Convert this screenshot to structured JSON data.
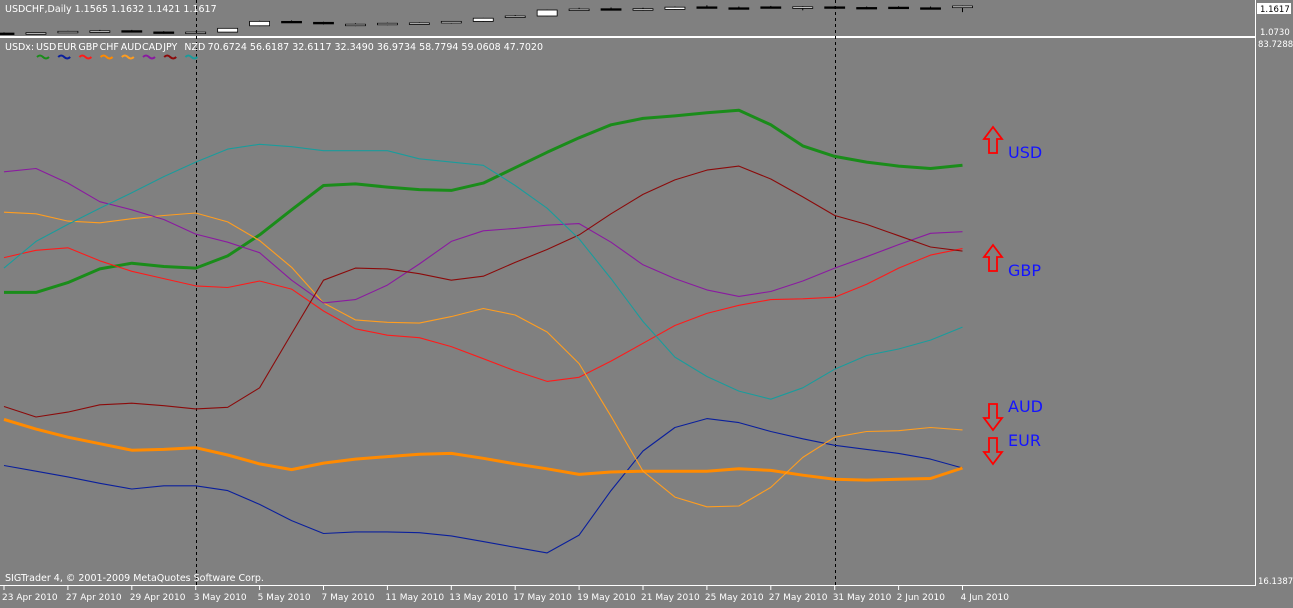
{
  "top_panel": {
    "label": "USDCHF,Daily  1.1565 1.1632 1.1421 1.1617",
    "price_high": "1.1617",
    "price_low": "1.0730",
    "candles": [
      {
        "o": 1.076,
        "h": 1.078,
        "l": 1.0735,
        "c": 1.074
      },
      {
        "o": 1.0745,
        "h": 1.0775,
        "l": 1.073,
        "c": 1.077
      },
      {
        "o": 1.0785,
        "h": 1.083,
        "l": 1.077,
        "c": 1.0815
      },
      {
        "o": 1.0815,
        "h": 1.086,
        "l": 1.08,
        "c": 1.083
      },
      {
        "o": 1.0835,
        "h": 1.086,
        "l": 1.079,
        "c": 1.08
      },
      {
        "o": 1.0795,
        "h": 1.082,
        "l": 1.074,
        "c": 1.076
      },
      {
        "o": 1.076,
        "h": 1.081,
        "l": 1.0735,
        "c": 1.079
      },
      {
        "o": 1.079,
        "h": 1.092,
        "l": 1.078,
        "c": 1.091
      },
      {
        "o": 1.099,
        "h": 1.115,
        "l": 1.098,
        "c": 1.113
      },
      {
        "o": 1.113,
        "h": 1.116,
        "l": 1.108,
        "c": 1.11
      },
      {
        "o": 1.11,
        "h": 1.112,
        "l": 1.103,
        "c": 1.105
      },
      {
        "o": 1.1,
        "h": 1.107,
        "l": 1.098,
        "c": 1.104
      },
      {
        "o": 1.104,
        "h": 1.109,
        "l": 1.101,
        "c": 1.107
      },
      {
        "o": 1.107,
        "h": 1.11,
        "l": 1.104,
        "c": 1.108
      },
      {
        "o": 1.108,
        "h": 1.114,
        "l": 1.106,
        "c": 1.113
      },
      {
        "o": 1.113,
        "h": 1.124,
        "l": 1.112,
        "c": 1.123
      },
      {
        "o": 1.128,
        "h": 1.133,
        "l": 1.125,
        "c": 1.13
      },
      {
        "o": 1.13,
        "h": 1.15,
        "l": 1.129,
        "c": 1.149
      },
      {
        "o": 1.15,
        "h": 1.156,
        "l": 1.147,
        "c": 1.152
      },
      {
        "o": 1.153,
        "h": 1.157,
        "l": 1.149,
        "c": 1.15
      },
      {
        "o": 1.151,
        "h": 1.156,
        "l": 1.147,
        "c": 1.153
      },
      {
        "o": 1.151,
        "h": 1.16,
        "l": 1.15,
        "c": 1.158
      },
      {
        "o": 1.159,
        "h": 1.164,
        "l": 1.155,
        "c": 1.156
      },
      {
        "o": 1.156,
        "h": 1.16,
        "l": 1.152,
        "c": 1.153
      },
      {
        "o": 1.159,
        "h": 1.162,
        "l": 1.154,
        "c": 1.156
      },
      {
        "o": 1.154,
        "h": 1.161,
        "l": 1.148,
        "c": 1.159
      },
      {
        "o": 1.159,
        "h": 1.161,
        "l": 1.153,
        "c": 1.156
      },
      {
        "o": 1.157,
        "h": 1.16,
        "l": 1.152,
        "c": 1.155
      },
      {
        "o": 1.158,
        "h": 1.161,
        "l": 1.154,
        "c": 1.156
      },
      {
        "o": 1.156,
        "h": 1.16,
        "l": 1.153,
        "c": 1.155
      },
      {
        "o": 1.1565,
        "h": 1.1632,
        "l": 1.1421,
        "c": 1.1617
      }
    ]
  },
  "indicator": {
    "header_prefix": "USDx:",
    "currencies": [
      {
        "code": "USD",
        "color": "#1a8c1a"
      },
      {
        "code": "EUR",
        "color": "#0a1f9c"
      },
      {
        "code": "GBP",
        "color": "#ff1a1a"
      },
      {
        "code": "CHF",
        "color": "#ff8a00"
      },
      {
        "code": "AUD",
        "color": "#ff9d1f"
      },
      {
        "code": "CAD",
        "color": "#8a1aa0"
      },
      {
        "code": "JPY",
        "color": "#8b0a0a"
      },
      {
        "code": "NZD",
        "color": "#1a9c9c"
      }
    ],
    "header_values": "70.6724 56.6187 32.6117 32.3490 36.9734 58.7794 59.0608 47.7020",
    "axis_max": "83.7288",
    "axis_min": "16.1387",
    "footer": "SIGTrader 4, © 2001-2009 MetaQuotes Software Corp."
  },
  "x_labels": [
    "23 Apr 2010",
    "27 Apr 2010",
    "29 Apr 2010",
    "3 May 2010",
    "5 May 2010",
    "7 May 2010",
    "11 May 2010",
    "13 May 2010",
    "17 May 2010",
    "19 May 2010",
    "21 May 2010",
    "25 May 2010",
    "27 May 2010",
    "31 May 2010",
    "2 Jun 2010",
    "4 Jun 2010"
  ],
  "arrows": [
    {
      "label": "USD",
      "direction": "up",
      "color": "#ff0000",
      "text_color": "#1414ff"
    },
    {
      "label": "GBP",
      "direction": "up",
      "color": "#ff0000",
      "text_color": "#1414ff"
    },
    {
      "label": "AUD",
      "direction": "down",
      "color": "#ff0000",
      "text_color": "#1414ff"
    },
    {
      "label": "EUR",
      "direction": "down",
      "color": "#ff0000",
      "text_color": "#1414ff"
    }
  ],
  "chart_data": {
    "type": "line",
    "x": [
      "23 Apr 2010",
      "26 Apr 2010",
      "27 Apr 2010",
      "28 Apr 2010",
      "29 Apr 2010",
      "30 Apr 2010",
      "3 May 2010",
      "4 May 2010",
      "5 May 2010",
      "6 May 2010",
      "7 May 2010",
      "10 May 2010",
      "11 May 2010",
      "12 May 2010",
      "13 May 2010",
      "14 May 2010",
      "17 May 2010",
      "18 May 2010",
      "19 May 2010",
      "20 May 2010",
      "21 May 2010",
      "24 May 2010",
      "25 May 2010",
      "26 May 2010",
      "27 May 2010",
      "28 May 2010",
      "31 May 2010",
      "1 Jun 2010",
      "2 Jun 2010",
      "3 Jun 2010",
      "4 Jun 2010"
    ],
    "ylim": [
      16.1387,
      83.7288
    ],
    "vertical_markers": [
      "3 May 2010",
      "31 May 2010"
    ],
    "series": [
      {
        "name": "USD",
        "values": [
          52.3,
          52.3,
          53.5,
          55.2,
          55.9,
          55.5,
          55.3,
          56.8,
          59.4,
          62.5,
          65.5,
          65.7,
          65.3,
          65.0,
          64.9,
          65.8,
          67.7,
          69.6,
          71.4,
          73.0,
          73.8,
          74.1,
          74.5,
          74.8,
          73.0,
          70.4,
          69.1,
          68.4,
          67.9,
          67.6,
          68.0
        ]
      },
      {
        "name": "EUR",
        "values": [
          30.9,
          30.2,
          29.5,
          28.7,
          28.0,
          28.4,
          28.4,
          27.8,
          26.1,
          24.1,
          22.5,
          22.7,
          22.7,
          22.6,
          22.2,
          21.5,
          20.8,
          20.1,
          22.3,
          27.8,
          32.7,
          35.6,
          36.7,
          36.2,
          35.1,
          34.2,
          33.4,
          32.9,
          32.4,
          31.7,
          30.6
        ]
      },
      {
        "name": "GBP",
        "values": [
          56.6,
          57.5,
          57.8,
          56.2,
          54.9,
          54.0,
          53.1,
          52.9,
          53.7,
          52.7,
          50.0,
          47.8,
          47.0,
          46.7,
          45.6,
          44.1,
          42.6,
          41.3,
          41.8,
          43.8,
          46.0,
          48.2,
          49.7,
          50.7,
          51.4,
          51.5,
          51.7,
          53.3,
          55.3,
          56.9,
          57.7
        ]
      },
      {
        "name": "CHF",
        "values": [
          36.6,
          35.4,
          34.4,
          33.6,
          32.8,
          32.9,
          33.1,
          32.2,
          31.1,
          30.4,
          31.2,
          31.7,
          32.0,
          32.3,
          32.4,
          31.8,
          31.1,
          30.5,
          29.8,
          30.1,
          30.2,
          30.2,
          30.2,
          30.5,
          30.3,
          29.7,
          29.2,
          29.1,
          29.2,
          29.3,
          30.6
        ]
      },
      {
        "name": "AUD",
        "values": [
          62.2,
          62.0,
          61.1,
          60.9,
          61.4,
          61.8,
          62.1,
          61.0,
          58.7,
          55.4,
          51.0,
          48.9,
          48.6,
          48.5,
          49.3,
          50.3,
          49.5,
          47.4,
          43.5,
          37.0,
          30.2,
          27.0,
          25.8,
          25.9,
          28.2,
          31.9,
          34.4,
          35.1,
          35.2,
          35.6,
          35.3
        ]
      },
      {
        "name": "CAD",
        "values": [
          67.2,
          67.6,
          65.8,
          63.5,
          62.5,
          61.3,
          59.5,
          58.5,
          57.2,
          53.8,
          51.0,
          51.4,
          53.2,
          55.8,
          58.6,
          59.9,
          60.2,
          60.6,
          60.8,
          58.5,
          55.7,
          54.0,
          52.6,
          51.8,
          52.4,
          53.7,
          55.3,
          56.7,
          58.2,
          59.6,
          59.8
        ]
      },
      {
        "name": "JPY",
        "values": [
          38.2,
          36.9,
          37.5,
          38.4,
          38.6,
          38.3,
          37.9,
          38.1,
          40.5,
          47.2,
          53.8,
          55.3,
          55.2,
          54.6,
          53.8,
          54.3,
          56.0,
          57.6,
          59.4,
          62.0,
          64.4,
          66.2,
          67.4,
          67.9,
          66.3,
          64.1,
          61.8,
          60.7,
          59.3,
          57.9,
          57.4
        ]
      },
      {
        "name": "NZD",
        "values": [
          55.3,
          58.6,
          60.7,
          62.7,
          64.6,
          66.6,
          68.4,
          70.0,
          70.6,
          70.3,
          69.8,
          69.8,
          69.8,
          68.8,
          68.4,
          68.0,
          65.5,
          62.7,
          58.9,
          54.0,
          48.7,
          44.3,
          41.9,
          40.1,
          39.1,
          40.5,
          42.8,
          44.5,
          45.3,
          46.4,
          48.0
        ]
      }
    ]
  }
}
